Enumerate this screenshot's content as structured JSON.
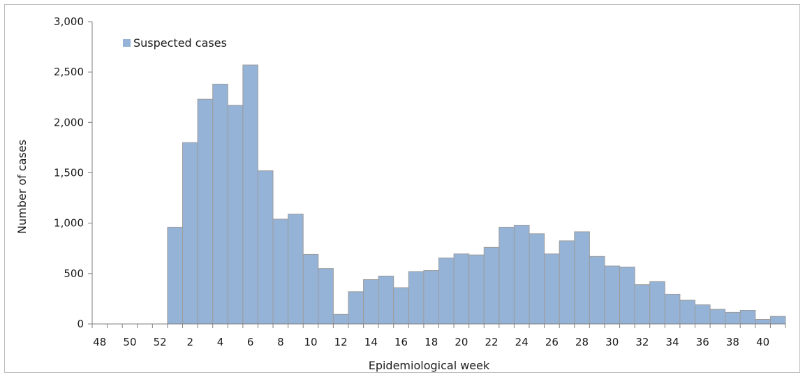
{
  "chart_data": {
    "type": "bar",
    "xlabel": "Epidemiological week",
    "ylabel": "Number of cases",
    "ylim": [
      0,
      3000
    ],
    "yticks": [
      "0",
      "500",
      "1,000",
      "1,500",
      "2,000",
      "2,500",
      "3,000"
    ],
    "x_tick_labels": [
      "48",
      "50",
      "52",
      "2",
      "4",
      "6",
      "8",
      "10",
      "12",
      "14",
      "16",
      "18",
      "20",
      "22",
      "24",
      "26",
      "28",
      "30",
      "32",
      "34",
      "36",
      "38",
      "40"
    ],
    "categories": [
      "48",
      "49",
      "50",
      "51",
      "52",
      "1",
      "2",
      "3",
      "4",
      "5",
      "6",
      "7",
      "8",
      "9",
      "10",
      "11",
      "12",
      "13",
      "14",
      "15",
      "16",
      "17",
      "18",
      "19",
      "20",
      "21",
      "22",
      "23",
      "24",
      "25",
      "26",
      "27",
      "28",
      "29",
      "30",
      "31",
      "32",
      "33",
      "34",
      "35",
      "36",
      "37",
      "38",
      "39",
      "40",
      "41"
    ],
    "series": [
      {
        "name": "Suspected cases",
        "color": "#95b3d7",
        "values": [
          0,
          0,
          0,
          0,
          0,
          960,
          1800,
          2230,
          2380,
          2170,
          2570,
          1520,
          1040,
          1090,
          690,
          550,
          95,
          320,
          440,
          475,
          360,
          520,
          530,
          655,
          695,
          685,
          760,
          960,
          980,
          895,
          695,
          825,
          915,
          670,
          575,
          565,
          390,
          420,
          295,
          235,
          190,
          145,
          115,
          135,
          45,
          75
        ]
      }
    ],
    "legend_position": "top-left",
    "grid": false
  }
}
